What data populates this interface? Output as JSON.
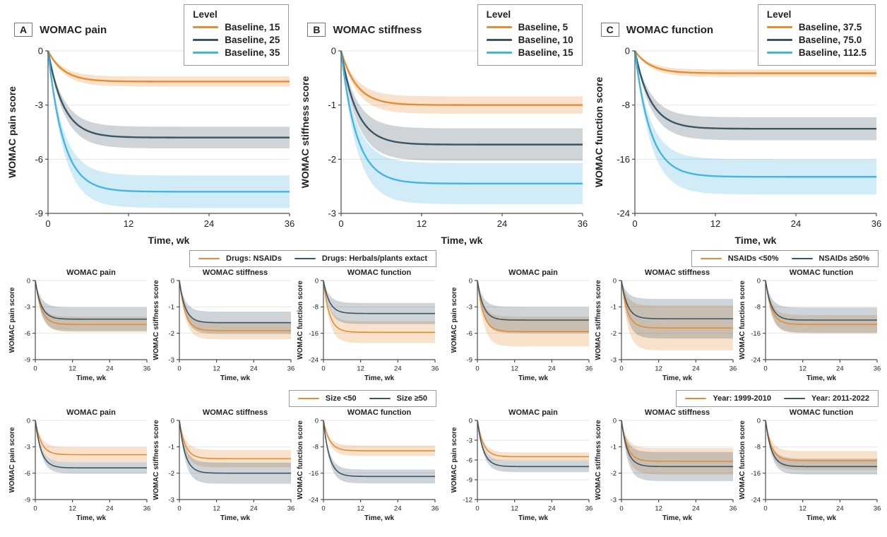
{
  "colors": {
    "orange": "#E68C32",
    "slate": "#3C5564",
    "blue": "#46B4E1",
    "grid": "#E4E4E4",
    "axis": "#4D4D4D",
    "text": "#222222",
    "band_opacity": 0.25
  },
  "chart_data": {
    "shared": {
      "type": "line",
      "xlabel": "Time, wk",
      "xlim": [
        0,
        36
      ],
      "xticks": [
        0,
        12,
        24,
        36
      ],
      "curve_model": "y(t) = plateau * (1 - exp(-t/tau)); shaded CI half-width grows with same curve to ci value",
      "grid": "horizontal gridlines at y ticks",
      "legend_position_top_row": "top-right box",
      "legend_position_sub_rows": "boxed legend right-aligned above each group of 3 panels"
    },
    "top_row": [
      {
        "panel_label": "A",
        "title": "WOMAC pain",
        "ylabel": "WOMAC pain score",
        "ylim": [
          -9,
          0
        ],
        "yticks": [
          0,
          -3,
          -6,
          -9
        ],
        "legend_title": "Level",
        "series": [
          {
            "label": "Baseline, 15",
            "color": "orange",
            "plateau": -1.7,
            "tau": 2.3,
            "ci": 0.28
          },
          {
            "label": "Baseline, 25",
            "color": "slate",
            "plateau": -4.8,
            "tau": 2.3,
            "ci": 0.6
          },
          {
            "label": "Baseline, 35",
            "color": "blue",
            "plateau": -7.8,
            "tau": 2.3,
            "ci": 0.9
          }
        ]
      },
      {
        "panel_label": "B",
        "title": "WOMAC stiffness",
        "ylabel": "WOMAC stiffness score",
        "ylim": [
          -3,
          0
        ],
        "yticks": [
          0,
          -1,
          -2,
          -3
        ],
        "legend_title": "Level",
        "series": [
          {
            "label": "Baseline, 5",
            "color": "orange",
            "plateau": -1.0,
            "tau": 2.3,
            "ci": 0.16
          },
          {
            "label": "Baseline, 10",
            "color": "slate",
            "plateau": -1.73,
            "tau": 2.3,
            "ci": 0.3
          },
          {
            "label": "Baseline, 15",
            "color": "blue",
            "plateau": -2.45,
            "tau": 2.3,
            "ci": 0.38
          }
        ]
      },
      {
        "panel_label": "C",
        "title": "WOMAC function",
        "ylabel": "WOMAC function score",
        "ylim": [
          -24,
          0
        ],
        "yticks": [
          0,
          -8,
          -16,
          -24
        ],
        "legend_title": "Level",
        "series": [
          {
            "label": "Baseline, 37.5",
            "color": "orange",
            "plateau": -3.3,
            "tau": 2.3,
            "ci": 0.55
          },
          {
            "label": "Baseline, 75.0",
            "color": "slate",
            "plateau": -11.5,
            "tau": 2.3,
            "ci": 1.7
          },
          {
            "label": "Baseline, 112.5",
            "color": "blue",
            "plateau": -18.6,
            "tau": 2.3,
            "ci": 2.6
          }
        ]
      }
    ],
    "sub_rows": [
      {
        "groups": [
          {
            "legend": [
              {
                "label": "Drugs: NSAIDs",
                "color": "orange"
              },
              {
                "label": "Drugs: Herbals/plants extact",
                "color": "slate"
              }
            ],
            "panels": [
              {
                "title": "WOMAC pain",
                "ylabel": "WOMAC pain score",
                "ylim": [
                  -9,
                  0
                ],
                "yticks": [
                  0,
                  -3,
                  -6,
                  -9
                ],
                "series": [
                  {
                    "label": "Drugs: NSAIDs",
                    "color": "orange",
                    "plateau": -5.0,
                    "tau": 1.9,
                    "ci": 0.88
                  },
                  {
                    "label": "Drugs: Herbals/plants extact",
                    "color": "slate",
                    "plateau": -4.4,
                    "tau": 1.9,
                    "ci": 1.35
                  }
                ]
              },
              {
                "title": "WOMAC stiffness",
                "ylabel": "WOMAC stiffness score",
                "ylim": [
                  -3,
                  0
                ],
                "yticks": [
                  0,
                  -1,
                  -2,
                  -3
                ],
                "series": [
                  {
                    "label": "Drugs: NSAIDs",
                    "color": "orange",
                    "plateau": -1.9,
                    "tau": 1.9,
                    "ci": 0.33
                  },
                  {
                    "label": "Drugs: Herbals/plants extact",
                    "color": "slate",
                    "plateau": -1.6,
                    "tau": 1.9,
                    "ci": 0.42
                  }
                ]
              },
              {
                "title": "WOMAC function",
                "ylabel": "WOMAC function score",
                "ylim": [
                  -24,
                  0
                ],
                "yticks": [
                  0,
                  -8,
                  -16,
                  -24
                ],
                "series": [
                  {
                    "label": "Drugs: NSAIDs",
                    "color": "orange",
                    "plateau": -15.7,
                    "tau": 1.9,
                    "ci": 3.3
                  },
                  {
                    "label": "Drugs: Herbals/plants extact",
                    "color": "slate",
                    "plateau": -10.0,
                    "tau": 1.9,
                    "ci": 3.2
                  }
                ]
              }
            ]
          },
          {
            "legend": [
              {
                "label": "NSAIDs <50%",
                "color": "orange"
              },
              {
                "label": "NSAIDs ≥50%",
                "color": "slate"
              }
            ],
            "panels": [
              {
                "title": "WOMAC pain",
                "ylabel": "WOMAC pain score",
                "ylim": [
                  -9,
                  0
                ],
                "yticks": [
                  0,
                  -3,
                  -6,
                  -9
                ],
                "series": [
                  {
                    "label": "NSAIDs <50%",
                    "color": "orange",
                    "plateau": -5.8,
                    "tau": 1.9,
                    "ci": 1.7
                  },
                  {
                    "label": "NSAIDs ≥50%",
                    "color": "slate",
                    "plateau": -4.5,
                    "tau": 1.9,
                    "ci": 1.5
                  }
                ]
              },
              {
                "title": "WOMAC stiffness",
                "ylabel": "WOMAC stiffness score",
                "ylim": [
                  -3,
                  0
                ],
                "yticks": [
                  0,
                  -1,
                  -2,
                  -3
                ],
                "series": [
                  {
                    "label": "NSAIDs <50%",
                    "color": "orange",
                    "plateau": -1.8,
                    "tau": 1.9,
                    "ci": 0.85
                  },
                  {
                    "label": "NSAIDs ≥50%",
                    "color": "slate",
                    "plateau": -1.45,
                    "tau": 1.9,
                    "ci": 0.75
                  }
                ]
              },
              {
                "title": "WOMAC function",
                "ylabel": "WOMAC function score",
                "ylim": [
                  -24,
                  0
                ],
                "yticks": [
                  0,
                  -8,
                  -16,
                  -24
                ],
                "series": [
                  {
                    "label": "NSAIDs <50%",
                    "color": "orange",
                    "plateau": -13.3,
                    "tau": 1.9,
                    "ci": 2.8
                  },
                  {
                    "label": "NSAIDs ≥50%",
                    "color": "slate",
                    "plateau": -12.0,
                    "tau": 1.9,
                    "ci": 3.8
                  }
                ]
              }
            ]
          }
        ]
      },
      {
        "groups": [
          {
            "legend": [
              {
                "label": "Size <50",
                "color": "orange"
              },
              {
                "label": "Size ≥50",
                "color": "slate"
              }
            ],
            "panels": [
              {
                "title": "WOMAC pain",
                "ylabel": "WOMAC pain score",
                "ylim": [
                  -9,
                  0
                ],
                "yticks": [
                  0,
                  -3,
                  -6,
                  -9
                ],
                "series": [
                  {
                    "label": "Size <50",
                    "color": "orange",
                    "plateau": -3.9,
                    "tau": 1.9,
                    "ci": 0.85
                  },
                  {
                    "label": "Size ≥50",
                    "color": "slate",
                    "plateau": -5.4,
                    "tau": 1.9,
                    "ci": 0.65
                  }
                ]
              },
              {
                "title": "WOMAC stiffness",
                "ylabel": "WOMAC stiffness score",
                "ylim": [
                  -3,
                  0
                ],
                "yticks": [
                  0,
                  -1,
                  -2,
                  -3
                ],
                "series": [
                  {
                    "label": "Size <50",
                    "color": "orange",
                    "plateau": -1.45,
                    "tau": 1.9,
                    "ci": 0.33
                  },
                  {
                    "label": "Size ≥50",
                    "color": "slate",
                    "plateau": -2.0,
                    "tau": 1.9,
                    "ci": 0.4
                  }
                ]
              },
              {
                "title": "WOMAC function",
                "ylabel": "WOMAC function score",
                "ylim": [
                  -24,
                  0
                ],
                "yticks": [
                  0,
                  -8,
                  -16,
                  -24
                ],
                "series": [
                  {
                    "label": "Size <50",
                    "color": "orange",
                    "plateau": -9.2,
                    "tau": 1.9,
                    "ci": 1.6
                  },
                  {
                    "label": "Size ≥50",
                    "color": "slate",
                    "plateau": -17.0,
                    "tau": 1.9,
                    "ci": 2.1
                  }
                ]
              }
            ]
          },
          {
            "legend": [
              {
                "label": "Year: 1999-2010",
                "color": "orange"
              },
              {
                "label": "Year: 2011-2022",
                "color": "slate"
              }
            ],
            "panels": [
              {
                "title": "WOMAC pain",
                "ylabel": "WOMAC pain score",
                "ylim": [
                  -12,
                  0
                ],
                "yticks": [
                  0,
                  -3,
                  -6,
                  -9,
                  -12
                ],
                "series": [
                  {
                    "label": "Year: 1999-2010",
                    "color": "orange",
                    "plateau": -5.5,
                    "tau": 1.9,
                    "ci": 0.65
                  },
                  {
                    "label": "Year: 2011-2022",
                    "color": "slate",
                    "plateau": -7.0,
                    "tau": 1.9,
                    "ci": 0.85
                  }
                ]
              },
              {
                "title": "WOMAC stiffness",
                "ylabel": "WOMAC stiffness score",
                "ylim": [
                  -3,
                  0
                ],
                "yticks": [
                  0,
                  -1,
                  -2,
                  -3
                ],
                "series": [
                  {
                    "label": "Year: 1999-2010",
                    "color": "orange",
                    "plateau": -1.55,
                    "tau": 1.9,
                    "ci": 0.5
                  },
                  {
                    "label": "Year: 2011-2022",
                    "color": "slate",
                    "plateau": -1.75,
                    "tau": 1.9,
                    "ci": 0.55
                  }
                ]
              },
              {
                "title": "WOMAC function",
                "ylabel": "WOMAC function score",
                "ylim": [
                  -24,
                  0
                ],
                "yticks": [
                  0,
                  -8,
                  -16,
                  -24
                ],
                "series": [
                  {
                    "label": "Year: 1999-2010",
                    "color": "orange",
                    "plateau": -12.2,
                    "tau": 1.9,
                    "ci": 2.9
                  },
                  {
                    "label": "Year: 2011-2022",
                    "color": "slate",
                    "plateau": -14.0,
                    "tau": 1.9,
                    "ci": 2.4
                  }
                ]
              }
            ]
          }
        ]
      }
    ]
  }
}
